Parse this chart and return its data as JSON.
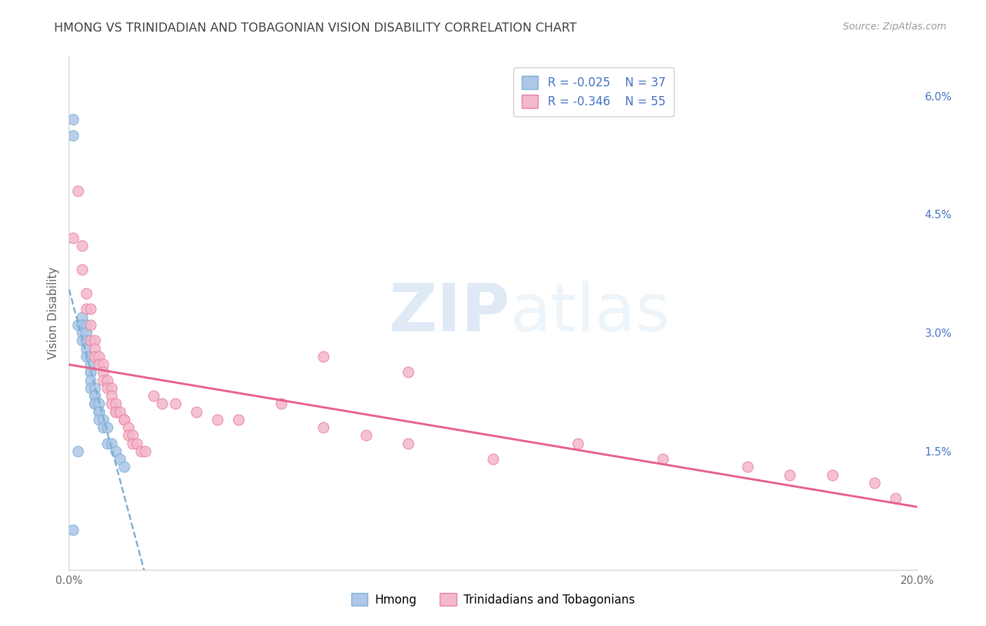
{
  "title": "HMONG VS TRINIDADIAN AND TOBAGONIAN VISION DISABILITY CORRELATION CHART",
  "source": "Source: ZipAtlas.com",
  "ylabel": "Vision Disability",
  "watermark_zip": "ZIP",
  "watermark_atlas": "atlas",
  "xlim": [
    0.0,
    0.2
  ],
  "ylim": [
    0.0,
    0.065
  ],
  "x_ticks": [
    0.0,
    0.04,
    0.08,
    0.12,
    0.16,
    0.2
  ],
  "x_tick_labels": [
    "0.0%",
    "",
    "",
    "",
    "",
    "20.0%"
  ],
  "y_ticks_right": [
    0.015,
    0.03,
    0.045,
    0.06
  ],
  "y_tick_labels_right": [
    "1.5%",
    "3.0%",
    "4.5%",
    "6.0%"
  ],
  "hmong_R": -0.025,
  "hmong_N": 37,
  "trint_R": -0.346,
  "trint_N": 55,
  "hmong_color": "#aec6e8",
  "hmong_edge_color": "#7bafd4",
  "trint_color": "#f4b8cb",
  "trint_edge_color": "#e87da0",
  "hmong_line_color": "#7bafd4",
  "trint_line_color": "#e8608a",
  "background_color": "#ffffff",
  "grid_color": "#d8d8d8",
  "title_color": "#404040",
  "legend_text_color": "#4472c4",
  "hmong_x": [
    0.001,
    0.001,
    0.002,
    0.003,
    0.003,
    0.003,
    0.003,
    0.004,
    0.004,
    0.004,
    0.004,
    0.004,
    0.005,
    0.005,
    0.005,
    0.005,
    0.005,
    0.005,
    0.006,
    0.006,
    0.006,
    0.006,
    0.006,
    0.007,
    0.007,
    0.007,
    0.007,
    0.008,
    0.008,
    0.009,
    0.009,
    0.01,
    0.011,
    0.012,
    0.013,
    0.002,
    0.001
  ],
  "hmong_y": [
    0.057,
    0.055,
    0.031,
    0.032,
    0.031,
    0.03,
    0.029,
    0.031,
    0.03,
    0.029,
    0.028,
    0.027,
    0.027,
    0.026,
    0.025,
    0.025,
    0.024,
    0.023,
    0.023,
    0.022,
    0.022,
    0.021,
    0.021,
    0.021,
    0.02,
    0.02,
    0.019,
    0.019,
    0.018,
    0.018,
    0.016,
    0.016,
    0.015,
    0.014,
    0.013,
    0.015,
    0.005
  ],
  "trint_x": [
    0.001,
    0.002,
    0.003,
    0.003,
    0.004,
    0.004,
    0.005,
    0.005,
    0.005,
    0.006,
    0.006,
    0.006,
    0.007,
    0.007,
    0.008,
    0.008,
    0.008,
    0.009,
    0.009,
    0.01,
    0.01,
    0.01,
    0.011,
    0.011,
    0.011,
    0.012,
    0.013,
    0.013,
    0.014,
    0.014,
    0.015,
    0.015,
    0.016,
    0.017,
    0.018,
    0.02,
    0.022,
    0.025,
    0.03,
    0.035,
    0.04,
    0.05,
    0.06,
    0.07,
    0.08,
    0.1,
    0.12,
    0.14,
    0.16,
    0.17,
    0.18,
    0.19,
    0.195,
    0.06,
    0.08
  ],
  "trint_y": [
    0.042,
    0.048,
    0.041,
    0.038,
    0.035,
    0.033,
    0.033,
    0.031,
    0.029,
    0.029,
    0.028,
    0.027,
    0.027,
    0.026,
    0.026,
    0.025,
    0.024,
    0.024,
    0.023,
    0.023,
    0.022,
    0.021,
    0.021,
    0.02,
    0.02,
    0.02,
    0.019,
    0.019,
    0.018,
    0.017,
    0.017,
    0.016,
    0.016,
    0.015,
    0.015,
    0.022,
    0.021,
    0.021,
    0.02,
    0.019,
    0.019,
    0.021,
    0.018,
    0.017,
    0.016,
    0.014,
    0.016,
    0.014,
    0.013,
    0.012,
    0.012,
    0.011,
    0.009,
    0.027,
    0.025
  ]
}
